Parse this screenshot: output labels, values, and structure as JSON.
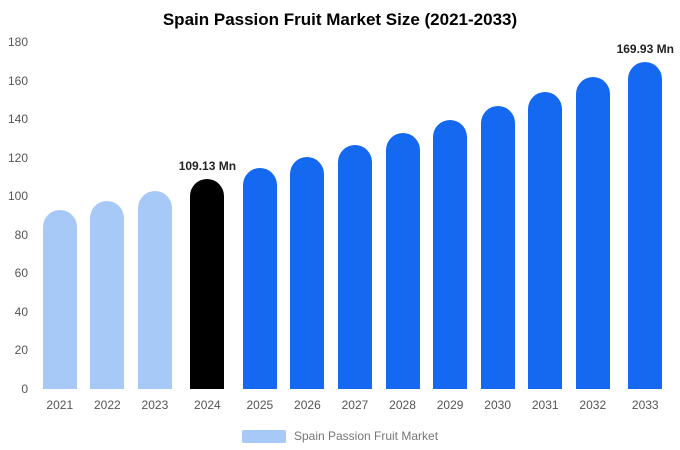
{
  "title": "Spain Passion Fruit Market Size (2021-2033)",
  "legend": {
    "label": "Spain Passion Fruit Market",
    "swatch_color": "#a6c9f8"
  },
  "colors": {
    "past_bar": "#a6c9f8",
    "highlight_bar": "#000000",
    "forecast_bar": "#1569f0",
    "axis_text": "#555555"
  },
  "chart_data": {
    "type": "bar",
    "title": "Spain Passion Fruit Market Size (2021-2033)",
    "categories": [
      "2021",
      "2022",
      "2023",
      "2024",
      "2025",
      "2026",
      "2027",
      "2028",
      "2029",
      "2030",
      "2031",
      "2032",
      "2033"
    ],
    "values": [
      92.8,
      97.6,
      102.9,
      109.13,
      114.6,
      120.4,
      126.5,
      132.8,
      139.5,
      146.6,
      154.0,
      161.7,
      169.93
    ],
    "unit": "Mn",
    "ylim": [
      0,
      180
    ],
    "yticks": [
      0,
      20,
      40,
      60,
      80,
      100,
      120,
      140,
      160,
      180
    ],
    "grid": false,
    "legend_position": "bottom",
    "bar_colors": [
      "#a6c9f8",
      "#a6c9f8",
      "#a6c9f8",
      "#000000",
      "#1569f0",
      "#1569f0",
      "#1569f0",
      "#1569f0",
      "#1569f0",
      "#1569f0",
      "#1569f0",
      "#1569f0",
      "#1569f0"
    ],
    "data_labels": [
      {
        "category": "2024",
        "text": "109.13 Mn"
      },
      {
        "category": "2033",
        "text": "169.93 Mn"
      }
    ]
  }
}
